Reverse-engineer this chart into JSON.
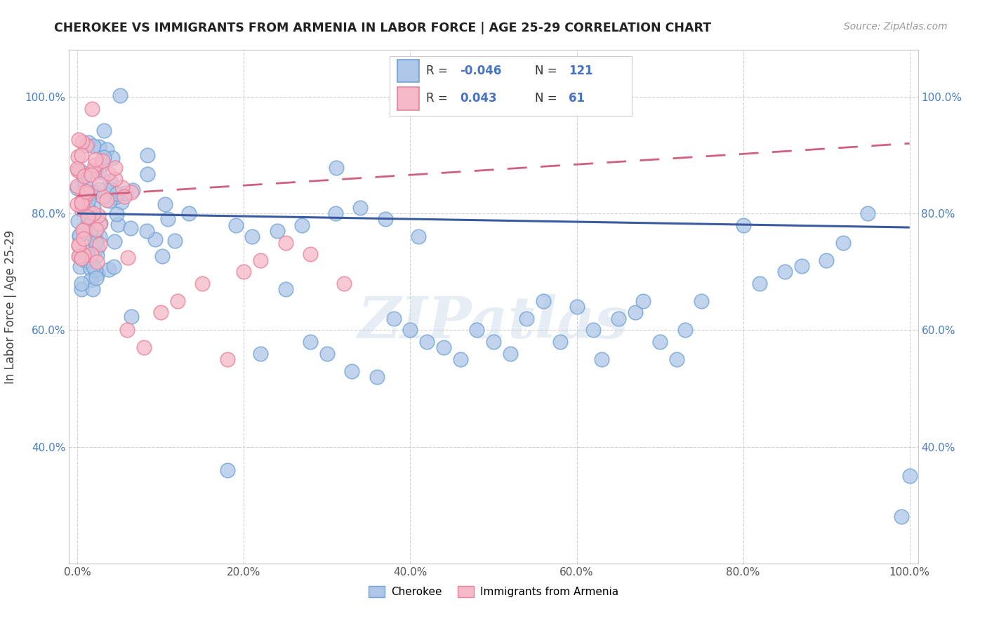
{
  "title": "CHEROKEE VS IMMIGRANTS FROM ARMENIA IN LABOR FORCE | AGE 25-29 CORRELATION CHART",
  "source": "Source: ZipAtlas.com",
  "ylabel": "In Labor Force | Age 25-29",
  "watermark": "ZIPatlas",
  "xlim": [
    -0.01,
    1.01
  ],
  "ylim": [
    0.2,
    1.08
  ],
  "xticks": [
    0.0,
    0.2,
    0.4,
    0.6,
    0.8,
    1.0
  ],
  "yticks": [
    0.4,
    0.6,
    0.8,
    1.0
  ],
  "xtick_labels": [
    "0.0%",
    "20.0%",
    "40.0%",
    "60.0%",
    "80.0%",
    "100.0%"
  ],
  "ytick_labels": [
    "40.0%",
    "60.0%",
    "80.0%",
    "100.0%"
  ],
  "cherokee_color": "#aec6e8",
  "cherokee_edge": "#6fa3d4",
  "armenia_color": "#f5b8c8",
  "armenia_edge": "#e8809a",
  "trend_blue": "#3a5ba0",
  "trend_pink": "#d06080",
  "background": "#ffffff",
  "grid_color": "#cccccc",
  "blue_trend_x": [
    0.0,
    1.0
  ],
  "blue_trend_y": [
    0.8,
    0.776
  ],
  "pink_trend_x": [
    0.0,
    1.0
  ],
  "pink_trend_y": [
    0.83,
    0.92
  ]
}
